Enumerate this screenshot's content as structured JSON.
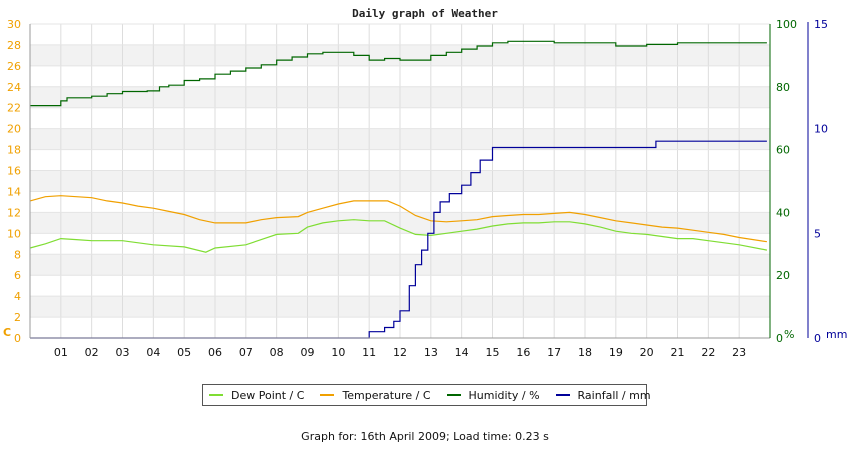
{
  "chart_data": {
    "type": "line",
    "title": "Daily graph of Weather",
    "footer": "Graph for: 16th April 2009; Load time: 0.23 s",
    "grid": true,
    "legend_position": "bottom",
    "x": {
      "unit": "hour",
      "range": [
        0,
        24
      ],
      "ticks": [
        1,
        2,
        3,
        4,
        5,
        6,
        7,
        8,
        9,
        10,
        11,
        12,
        13,
        14,
        15,
        16,
        17,
        18,
        19,
        20,
        21,
        22,
        23
      ],
      "tick_labels": [
        "01",
        "02",
        "03",
        "04",
        "05",
        "06",
        "07",
        "08",
        "09",
        "10",
        "11",
        "12",
        "13",
        "14",
        "15",
        "16",
        "17",
        "18",
        "19",
        "20",
        "21",
        "22",
        "23"
      ]
    },
    "axes": {
      "left": {
        "label": "C",
        "range": [
          0,
          30
        ],
        "ticks": [
          0,
          2,
          4,
          6,
          8,
          10,
          12,
          14,
          16,
          18,
          20,
          22,
          24,
          26,
          28,
          30
        ],
        "color": "#f0a000"
      },
      "right1": {
        "label": "%",
        "range": [
          0,
          100
        ],
        "ticks": [
          0,
          20,
          40,
          60,
          80,
          100
        ],
        "color": "#006600"
      },
      "right2": {
        "label": "mm",
        "range": [
          0,
          15
        ],
        "ticks": [
          0,
          5,
          10,
          15
        ],
        "color": "#000099"
      }
    },
    "series": [
      {
        "name": "Dew Point / C",
        "axis": "left",
        "color": "#7fdd33",
        "points": [
          [
            0,
            8.6
          ],
          [
            0.5,
            9.0
          ],
          [
            1,
            9.5
          ],
          [
            1.5,
            9.4
          ],
          [
            2,
            9.3
          ],
          [
            3,
            9.3
          ],
          [
            4,
            8.9
          ],
          [
            5,
            8.7
          ],
          [
            5.7,
            8.2
          ],
          [
            6,
            8.6
          ],
          [
            7,
            8.9
          ],
          [
            7.5,
            9.4
          ],
          [
            8,
            9.9
          ],
          [
            8.7,
            10.0
          ],
          [
            9,
            10.6
          ],
          [
            9.5,
            11.0
          ],
          [
            10,
            11.2
          ],
          [
            10.5,
            11.3
          ],
          [
            11,
            11.2
          ],
          [
            11.5,
            11.2
          ],
          [
            12,
            10.5
          ],
          [
            12.5,
            9.9
          ],
          [
            13,
            9.8
          ],
          [
            13.5,
            10.0
          ],
          [
            14,
            10.2
          ],
          [
            14.5,
            10.4
          ],
          [
            15,
            10.7
          ],
          [
            15.5,
            10.9
          ],
          [
            16,
            11.0
          ],
          [
            16.5,
            11.0
          ],
          [
            17,
            11.1
          ],
          [
            17.5,
            11.1
          ],
          [
            18,
            10.9
          ],
          [
            18.5,
            10.6
          ],
          [
            19,
            10.2
          ],
          [
            19.5,
            10.0
          ],
          [
            20,
            9.9
          ],
          [
            20.5,
            9.7
          ],
          [
            21,
            9.5
          ],
          [
            21.5,
            9.5
          ],
          [
            22,
            9.3
          ],
          [
            23,
            8.9
          ],
          [
            23.9,
            8.4
          ]
        ]
      },
      {
        "name": "Temperature / C",
        "axis": "left",
        "color": "#f0a000",
        "points": [
          [
            0,
            13.1
          ],
          [
            0.5,
            13.5
          ],
          [
            1,
            13.6
          ],
          [
            1.5,
            13.5
          ],
          [
            2,
            13.4
          ],
          [
            2.5,
            13.1
          ],
          [
            3,
            12.9
          ],
          [
            3.5,
            12.6
          ],
          [
            4,
            12.4
          ],
          [
            4.5,
            12.1
          ],
          [
            5,
            11.8
          ],
          [
            5.5,
            11.3
          ],
          [
            6,
            11.0
          ],
          [
            7,
            11.0
          ],
          [
            7.5,
            11.3
          ],
          [
            8,
            11.5
          ],
          [
            8.7,
            11.6
          ],
          [
            9,
            12.0
          ],
          [
            9.5,
            12.4
          ],
          [
            10,
            12.8
          ],
          [
            10.5,
            13.1
          ],
          [
            11,
            13.1
          ],
          [
            11.6,
            13.1
          ],
          [
            12,
            12.6
          ],
          [
            12.5,
            11.7
          ],
          [
            13,
            11.2
          ],
          [
            13.5,
            11.1
          ],
          [
            14,
            11.2
          ],
          [
            14.5,
            11.3
          ],
          [
            15,
            11.6
          ],
          [
            15.5,
            11.7
          ],
          [
            16,
            11.8
          ],
          [
            16.5,
            11.8
          ],
          [
            17,
            11.9
          ],
          [
            17.5,
            12.0
          ],
          [
            18,
            11.8
          ],
          [
            18.5,
            11.5
          ],
          [
            19,
            11.2
          ],
          [
            19.5,
            11.0
          ],
          [
            20,
            10.8
          ],
          [
            20.5,
            10.6
          ],
          [
            21,
            10.5
          ],
          [
            21.5,
            10.3
          ],
          [
            22,
            10.1
          ],
          [
            22.5,
            9.9
          ],
          [
            23,
            9.6
          ],
          [
            23.9,
            9.2
          ]
        ]
      },
      {
        "name": "Humidity / %",
        "axis": "right1",
        "color": "#006600",
        "points": [
          [
            0,
            74
          ],
          [
            0.8,
            74
          ],
          [
            1,
            75.5
          ],
          [
            1.2,
            76.5
          ],
          [
            1.7,
            76.5
          ],
          [
            2,
            77
          ],
          [
            2.5,
            77.8
          ],
          [
            3,
            78.5
          ],
          [
            3.8,
            78.7
          ],
          [
            4.2,
            80
          ],
          [
            4.5,
            80.5
          ],
          [
            5,
            82
          ],
          [
            5.5,
            82.5
          ],
          [
            6,
            84
          ],
          [
            6.5,
            85
          ],
          [
            7,
            86
          ],
          [
            7.5,
            87
          ],
          [
            8,
            88.5
          ],
          [
            8.5,
            89.5
          ],
          [
            9,
            90.5
          ],
          [
            9.5,
            91
          ],
          [
            10,
            91
          ],
          [
            10.5,
            90
          ],
          [
            11,
            88.5
          ],
          [
            11.5,
            89
          ],
          [
            12,
            88.5
          ],
          [
            12.5,
            88.5
          ],
          [
            13,
            90
          ],
          [
            13.5,
            91
          ],
          [
            14,
            92
          ],
          [
            14.5,
            93
          ],
          [
            15,
            94
          ],
          [
            15.5,
            94.5
          ],
          [
            16,
            94.5
          ],
          [
            17,
            94
          ],
          [
            18,
            94
          ],
          [
            19,
            93
          ],
          [
            20,
            93.5
          ],
          [
            21,
            94
          ],
          [
            22,
            94
          ],
          [
            23,
            94
          ],
          [
            23.9,
            94
          ]
        ]
      },
      {
        "name": "Rainfall / mm",
        "axis": "right2",
        "color": "#000099",
        "points": [
          [
            0,
            0
          ],
          [
            10.9,
            0
          ],
          [
            11,
            0.3
          ],
          [
            11.5,
            0.5
          ],
          [
            11.8,
            0.8
          ],
          [
            12,
            1.3
          ],
          [
            12.3,
            2.5
          ],
          [
            12.5,
            3.5
          ],
          [
            12.7,
            4.2
          ],
          [
            12.9,
            5.0
          ],
          [
            13.1,
            6.0
          ],
          [
            13.3,
            6.5
          ],
          [
            13.6,
            6.9
          ],
          [
            14,
            7.3
          ],
          [
            14.3,
            7.9
          ],
          [
            14.6,
            8.5
          ],
          [
            15,
            9.1
          ],
          [
            16,
            9.1
          ],
          [
            17,
            9.1
          ],
          [
            18,
            9.1
          ],
          [
            19,
            9.1
          ],
          [
            20.2,
            9.1
          ],
          [
            20.3,
            9.4
          ],
          [
            22,
            9.4
          ],
          [
            23.9,
            9.4
          ]
        ]
      }
    ]
  }
}
